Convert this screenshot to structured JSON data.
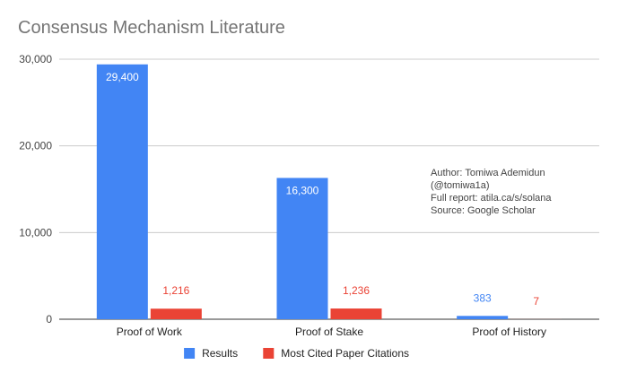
{
  "chart_data": {
    "type": "bar",
    "title": "Consensus Mechanism Literature",
    "categories": [
      "Proof of Work",
      "Proof of Stake",
      "Proof of History"
    ],
    "series": [
      {
        "name": "Results",
        "values": [
          29400,
          16300,
          383
        ],
        "labels": [
          "29,400",
          "16,300",
          "383"
        ],
        "color": "#4285f4"
      },
      {
        "name": "Most Cited Paper Citations",
        "values": [
          1216,
          1236,
          7
        ],
        "labels": [
          "1,216",
          "1,236",
          "7"
        ],
        "color": "#ea4335"
      }
    ],
    "yticks": [
      0,
      10000,
      20000,
      30000
    ],
    "ytick_labels": [
      "0",
      "10,000",
      "20,000",
      "30,000"
    ],
    "ylim": [
      0,
      30000
    ],
    "grid": true,
    "legend": "bottom",
    "annotation": [
      "Author: Tomiwa Ademidun",
      "(@tomiwa1a)",
      "Full report: atila.ca/s/solana",
      "Source: Google Scholar"
    ]
  }
}
